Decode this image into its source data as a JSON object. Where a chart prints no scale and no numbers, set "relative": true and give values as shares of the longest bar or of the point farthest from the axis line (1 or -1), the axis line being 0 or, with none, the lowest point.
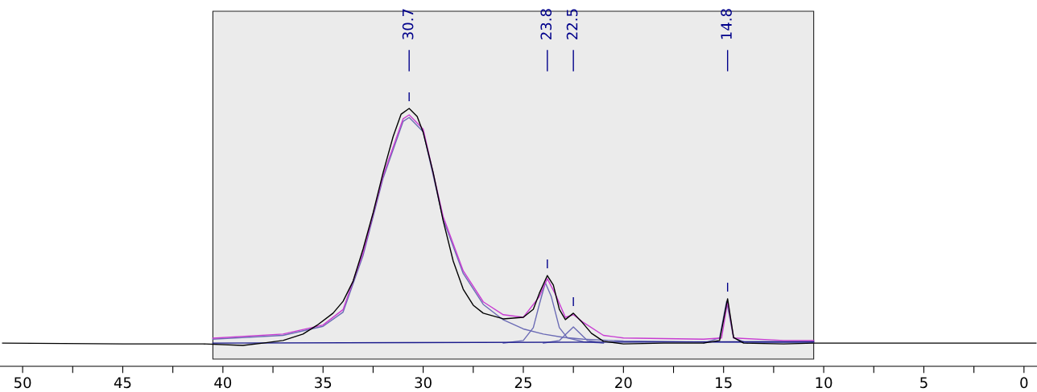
{
  "chart_data": {
    "type": "line",
    "relative": true,
    "xlim": [
      51.13,
      -0.65
    ],
    "xticks": [
      50,
      {
        "value": 47.5,
        "label": null
      },
      45,
      {
        "value": 42.5,
        "label": null
      },
      40,
      {
        "value": 37.5,
        "label": null
      },
      35,
      {
        "value": 32.5,
        "label": null
      },
      30,
      {
        "value": 27.5,
        "label": null
      },
      25,
      {
        "value": 22.5,
        "label": null
      },
      20,
      {
        "value": 17.5,
        "label": null
      },
      15,
      {
        "value": 12.5,
        "label": null
      },
      10,
      {
        "value": 7.5,
        "label": null
      },
      5,
      {
        "value": 2.5,
        "label": null
      },
      0
    ],
    "bands": [
      {
        "axis": "x",
        "from": 40.5,
        "to": 10.5,
        "color": "#ebebeb"
      }
    ],
    "grid": false,
    "legend": false,
    "annotations": [
      {
        "text": "30.7",
        "x": 30.7
      },
      {
        "text": "23.8",
        "x": 23.8
      },
      {
        "text": "22.5",
        "x": 22.5
      },
      {
        "text": "14.8",
        "x": 14.8
      }
    ],
    "series": [
      {
        "color": "#6b6bb5",
        "x": [
          40.5,
          37,
          35,
          34,
          33,
          32,
          31,
          30.7,
          30,
          29,
          28,
          27,
          26,
          25,
          24,
          23,
          22,
          20,
          15,
          10.5
        ],
        "values": [
          0.105,
          0.12,
          0.155,
          0.21,
          0.43,
          0.73,
          0.95,
          0.965,
          0.91,
          0.57,
          0.36,
          0.24,
          0.18,
          0.145,
          0.125,
          0.112,
          0.105,
          0.098,
          0.093,
          0.092
        ]
      },
      {
        "color": "#6b6bb5",
        "x": [
          26,
          25,
          24.5,
          24.2,
          23.9,
          23.6,
          23.2,
          22.8,
          22,
          21
        ],
        "values": [
          0.09,
          0.1,
          0.15,
          0.24,
          0.324,
          0.27,
          0.15,
          0.11,
          0.095,
          0.09
        ]
      },
      {
        "color": "#6b6bb5",
        "x": [
          24,
          23.2,
          22.8,
          22.5,
          22.2,
          21.8,
          21
        ],
        "values": [
          0.09,
          0.1,
          0.13,
          0.153,
          0.13,
          0.1,
          0.09
        ]
      },
      {
        "color": "#6b6bb5",
        "x": [
          16,
          15.2,
          14.85,
          14.5,
          13.8
        ],
        "values": [
          0.09,
          0.11,
          0.252,
          0.11,
          0.09
        ]
      },
      {
        "color": "#1a1a8c",
        "x": [
          40.5,
          10.5
        ],
        "values": [
          0.09,
          0.096
        ]
      },
      {
        "color": "#c83cd2",
        "x": [
          40.5,
          37,
          35,
          34,
          33,
          32,
          31,
          30.7,
          30,
          29,
          28,
          27,
          26,
          25,
          24.2,
          23.8,
          23.4,
          22.9,
          22.5,
          22,
          21,
          20,
          16,
          15.1,
          14.8,
          14.5,
          12,
          10.5
        ],
        "values": [
          0.109,
          0.125,
          0.16,
          0.22,
          0.44,
          0.74,
          0.96,
          0.975,
          0.92,
          0.58,
          0.37,
          0.25,
          0.2,
          0.19,
          0.27,
          0.34,
          0.28,
          0.19,
          0.2,
          0.17,
          0.12,
          0.11,
          0.105,
          0.11,
          0.25,
          0.11,
          0.1,
          0.1
        ]
      },
      {
        "color": "#000000",
        "x": [
          51.0,
          45,
          41,
          39,
          38,
          37,
          36,
          35.3,
          34.5,
          34,
          33.5,
          33,
          32.5,
          32,
          31.5,
          31.1,
          30.7,
          30.3,
          30,
          29.5,
          29,
          28.5,
          28,
          27.5,
          27,
          26,
          25,
          24.5,
          24.2,
          23.8,
          23.5,
          23.2,
          22.9,
          22.5,
          22.1,
          21.6,
          21,
          20,
          18,
          16,
          15.2,
          14.8,
          14.5,
          14,
          12,
          10.5,
          5,
          0,
          -0.6
        ],
        "values": [
          0.09,
          0.087,
          0.087,
          0.081,
          0.09,
          0.1,
          0.125,
          0.159,
          0.206,
          0.252,
          0.33,
          0.455,
          0.595,
          0.751,
          0.891,
          0.978,
          1.0,
          0.969,
          0.907,
          0.751,
          0.564,
          0.408,
          0.299,
          0.237,
          0.206,
          0.184,
          0.19,
          0.221,
          0.283,
          0.352,
          0.315,
          0.221,
          0.181,
          0.206,
          0.174,
          0.128,
          0.097,
          0.087,
          0.09,
          0.09,
          0.1,
          0.262,
          0.112,
          0.09,
          0.087,
          0.09,
          0.09,
          0.09,
          0.09
        ]
      }
    ]
  }
}
